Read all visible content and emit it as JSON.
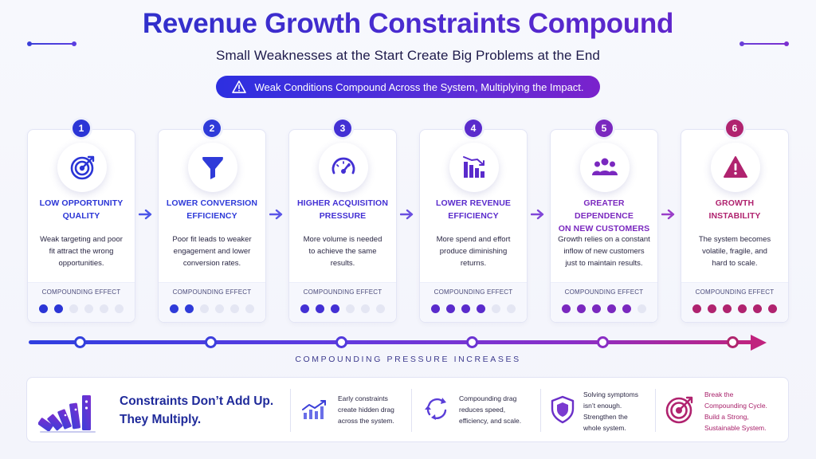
{
  "header": {
    "title": "Revenue Growth Constraints Compound",
    "subtitle": "Small Weaknesses at the Start Create Big Problems at the End",
    "banner": "Weak Conditions Compound Across the System, Multiplying the Impact."
  },
  "stages": [
    {
      "number": "1",
      "icon": "target-icon",
      "title_lines": [
        "LOW OPPORTUNITY",
        "QUALITY"
      ],
      "desc_lines": [
        "Weak targeting and poor",
        "fit attract the wrong",
        "opportunities."
      ],
      "effect_label": "COMPOUNDING EFFECT",
      "filled_dots": 2,
      "total_dots": 6,
      "color": "#2b35d6"
    },
    {
      "number": "2",
      "icon": "funnel-icon",
      "title_lines": [
        "LOWER CONVERSION",
        "EFFICIENCY"
      ],
      "desc_lines": [
        "Poor fit leads to weaker",
        "engagement and lower",
        "conversion rates."
      ],
      "effect_label": "COMPOUNDING EFFECT",
      "filled_dots": 2,
      "total_dots": 6,
      "color": "#2f3bd9"
    },
    {
      "number": "3",
      "icon": "gauge-icon",
      "title_lines": [
        "HIGHER ACQUISITION",
        "PRESSURE"
      ],
      "desc_lines": [
        "More volume is needed",
        "to achieve the same",
        "results."
      ],
      "effect_label": "COMPOUNDING EFFECT",
      "filled_dots": 3,
      "total_dots": 6,
      "color": "#4330d4"
    },
    {
      "number": "4",
      "icon": "declining-bars-icon",
      "title_lines": [
        "LOWER REVENUE",
        "EFFICIENCY"
      ],
      "desc_lines": [
        "More spend and effort",
        "produce diminishing",
        "returns."
      ],
      "effect_label": "COMPOUNDING EFFECT",
      "filled_dots": 4,
      "total_dots": 6,
      "color": "#5a2bcc"
    },
    {
      "number": "5",
      "icon": "people-icon",
      "title_lines": [
        "GREATER DEPENDENCE",
        "ON NEW CUSTOMERS"
      ],
      "desc_lines": [
        "Growth relies on a constant",
        "inflow of new customers",
        "just to maintain results."
      ],
      "effect_label": "COMPOUNDING EFFECT",
      "filled_dots": 5,
      "total_dots": 6,
      "color": "#7a28bf"
    },
    {
      "number": "6",
      "icon": "warning-icon",
      "title_lines": [
        "GROWTH",
        "INSTABILITY"
      ],
      "desc_lines": [
        "The system becomes",
        "volatile, fragile, and",
        "hard to scale."
      ],
      "effect_label": "COMPOUNDING EFFECT",
      "filled_dots": 6,
      "total_dots": 6,
      "color": "#b0236f"
    }
  ],
  "progress": {
    "label": "COMPOUNDING PRESSURE INCREASES"
  },
  "summary": {
    "headline_lines": [
      "Constraints Don’t Add Up.",
      "They Multiply."
    ],
    "points": [
      {
        "icon": "trend-chart-icon",
        "lines": [
          "Early constraints",
          "create hidden drag",
          "across the system."
        ]
      },
      {
        "icon": "cycle-icon",
        "lines": [
          "Compounding drag",
          "reduces speed,",
          "efficiency, and scale."
        ]
      },
      {
        "icon": "shield-icon",
        "lines": [
          "Solving symptoms",
          "isn’t enough.",
          "Strengthen the",
          "whole system."
        ]
      },
      {
        "icon": "target-icon",
        "lines": [
          "Break the",
          "Compounding Cycle.",
          "Build a Strong,",
          "Sustainable System."
        ]
      }
    ]
  }
}
